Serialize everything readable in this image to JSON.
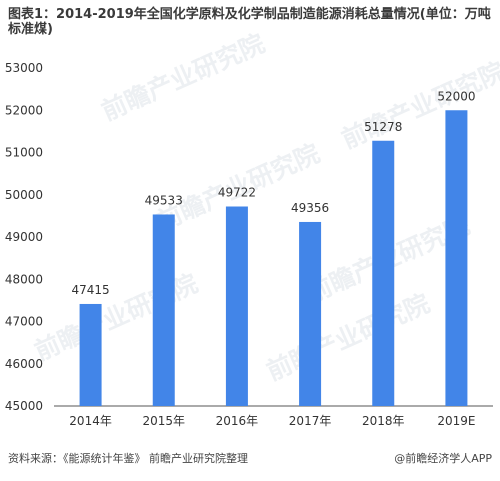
{
  "title": "图表1：2014-2019年全国化学原料及化学制品制造能源消耗总量情况(单位：万吨标准煤)",
  "footer": {
    "source": "资料来源：《能源统计年鉴》 前瞻产业研究院整理",
    "brand": "@前瞻经济学人APP"
  },
  "watermarks": {
    "text": "前瞻产业研究院",
    "items": [
      "前瞻产业研究院",
      "前瞻产业研究院",
      "前瞻产业研究院",
      "前瞻产业研究院",
      "前瞻产业研究院",
      "前瞻产业研究院"
    ]
  },
  "colors": {
    "bar": "#4285e8",
    "axis": "#555555",
    "text": "#333333"
  },
  "chart_data": {
    "type": "bar",
    "title": "图表1：2014-2019年全国化学原料及化学制品制造能源消耗总量情况(单位：万吨标准煤)",
    "xlabel": "",
    "ylabel": "",
    "categories": [
      "2014年",
      "2015年",
      "2016年",
      "2017年",
      "2018年",
      "2019E"
    ],
    "values": [
      47415,
      49533,
      49722,
      49356,
      51278,
      52000
    ],
    "data_labels": [
      "47415",
      "49533",
      "49722",
      "49356",
      "51278",
      "52000"
    ],
    "ylim": [
      45000,
      53000
    ],
    "yticks": [
      45000,
      46000,
      47000,
      48000,
      49000,
      50000,
      51000,
      52000,
      53000
    ],
    "ytick_labels": [
      "45000",
      "46000",
      "47000",
      "48000",
      "49000",
      "50000",
      "51000",
      "52000",
      "53000"
    ],
    "grid": false,
    "legend": "none"
  }
}
